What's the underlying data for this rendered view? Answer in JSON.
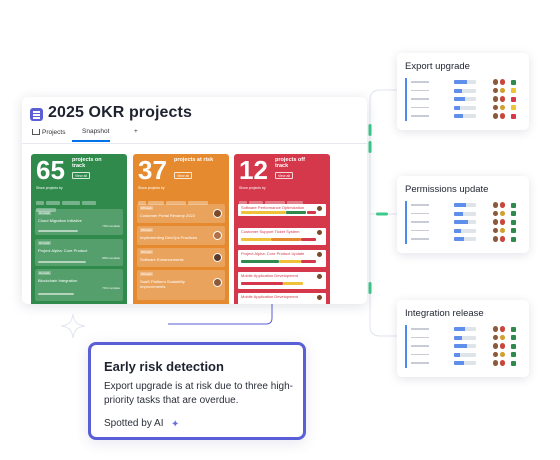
{
  "main": {
    "title": "2025 OKR projects",
    "tabs": [
      {
        "label": "Projects"
      },
      {
        "label": "Snapshot"
      },
      {
        "label": "+"
      }
    ],
    "columns": [
      {
        "count": "65",
        "label": "projects on track",
        "view_all": "View all",
        "show_by": "Show projects by",
        "items": [
          {
            "tag": "On track",
            "name": "Cloud Migration Initiative",
            "meta": "73% complete"
          },
          {
            "tag": "On track",
            "name": "Project Alpha: Core Product",
            "meta": "80% complete"
          },
          {
            "tag": "On track",
            "name": "Blockchain Integration",
            "meta": "71% complete"
          }
        ]
      },
      {
        "count": "37",
        "label": "projects at risk",
        "view_all": "View all",
        "show_by": "Show projects by",
        "items": [
          {
            "tag": "Off track",
            "name": "Customer Portal Revamp 2022"
          },
          {
            "tag": "Off track",
            "name": "Implementing DevOps Practices"
          },
          {
            "tag": "Off track",
            "name": "Software Enhancements"
          },
          {
            "tag": "Off track",
            "name": "SaaS Platform Scalability Improvements"
          }
        ]
      },
      {
        "count": "12",
        "label": "projects off track",
        "view_all": "View all",
        "show_by": "Show projects by",
        "items": [
          {
            "name": "Software Performance Optimization"
          },
          {
            "name": "Customer Support Ticket System"
          },
          {
            "name": "Project Alpha: Core Product Update"
          },
          {
            "name": "Mobile Application Development"
          },
          {
            "name": "Mobile Application Development"
          }
        ]
      }
    ]
  },
  "right_cards": [
    {
      "title": "Export upgrade"
    },
    {
      "title": "Permissions update"
    },
    {
      "title": "Integration release"
    }
  ],
  "callout": {
    "title": "Early risk detection",
    "body": "Export upgrade is at risk due to three high-priority tasks that are overdue.",
    "footer": "Spotted by AI",
    "sparkle": "✦"
  },
  "colors": {
    "accent": "#5a5fd8",
    "on_track": "#2f8a4c",
    "at_risk": "#e58a2f",
    "off_track": "#d5384a",
    "connector": "#3ec98c"
  },
  "icons": [
    "board-icon",
    "home-icon",
    "sparkle-icon",
    "avatar"
  ]
}
